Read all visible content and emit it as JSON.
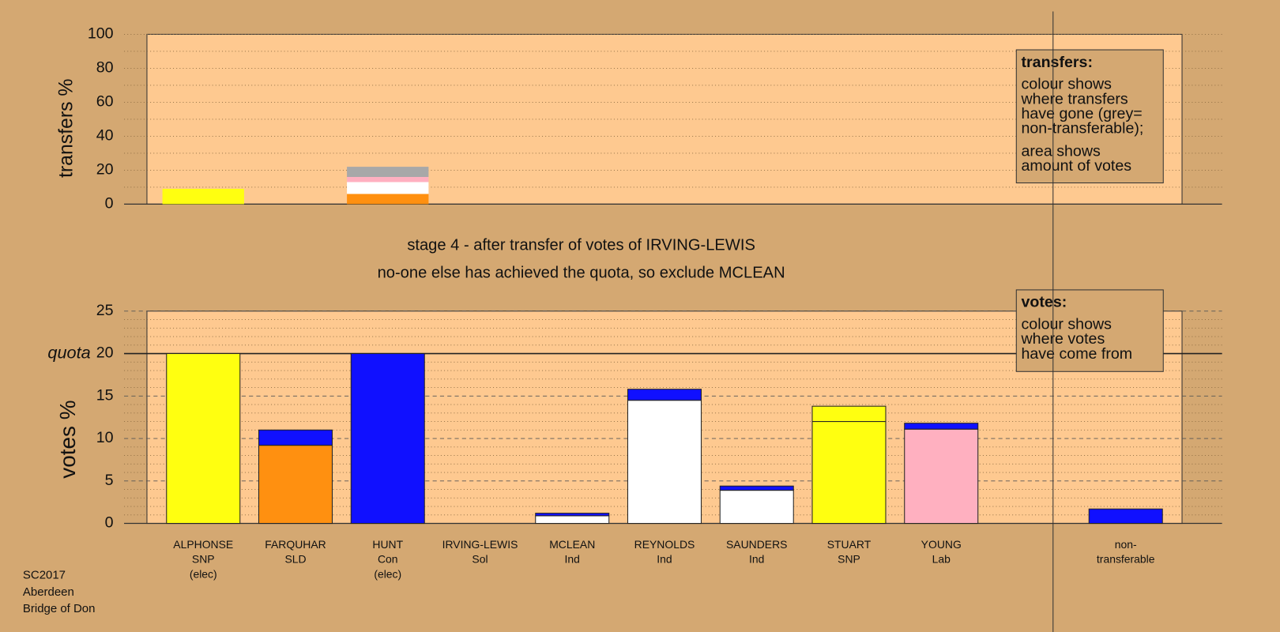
{
  "chart_data": [
    {
      "type": "stacked-bar",
      "ylabel": "transfers %",
      "ylim": [
        0,
        100
      ],
      "yticks": [
        0,
        20,
        40,
        60,
        80,
        100
      ],
      "minor_yticks": [
        10,
        30,
        50,
        70,
        90
      ],
      "series": [
        {
          "color": "#ff9010",
          "values": [
            null,
            null,
            6,
            null,
            null,
            null,
            null,
            null,
            null,
            null,
            null
          ]
        },
        {
          "color": "#ffffff",
          "values": [
            null,
            null,
            7,
            null,
            null,
            null,
            null,
            null,
            null,
            null,
            null
          ]
        },
        {
          "color": "#ffb0c0",
          "values": [
            null,
            null,
            3,
            null,
            null,
            null,
            null,
            null,
            null,
            null,
            null
          ]
        },
        {
          "color": "#a8a8a8",
          "values": [
            null,
            null,
            6,
            null,
            null,
            null,
            null,
            null,
            null,
            null,
            null
          ]
        },
        {
          "color": "#ffff10",
          "values": [
            9,
            null,
            null,
            null,
            null,
            null,
            null,
            null,
            null,
            null,
            null
          ]
        }
      ],
      "legend_box": {
        "title": "transfers:",
        "paragraphs": [
          [
            "colour shows",
            "where transfers",
            "have gone (grey=",
            "non-transferable);"
          ],
          [
            "area shows",
            "amount of votes"
          ]
        ]
      }
    },
    {
      "type": "stacked-bar",
      "ylabel": "votes %",
      "categories": [
        [
          "ALPHONSE",
          "SNP",
          "(elec)"
        ],
        [
          "FARQUHAR",
          "SLD"
        ],
        [
          "HUNT",
          "Con",
          "(elec)"
        ],
        [
          "IRVING-LEWIS",
          "Sol"
        ],
        [
          "MCLEAN",
          "Ind"
        ],
        [
          "REYNOLDS",
          "Ind"
        ],
        [
          "SAUNDERS",
          "Ind"
        ],
        [
          "STUART",
          "SNP"
        ],
        [
          "YOUNG",
          "Lab"
        ],
        null,
        [
          "non-",
          "transferable"
        ]
      ],
      "ylim": [
        0,
        25
      ],
      "yticks": [
        0,
        5,
        10,
        15,
        20,
        25
      ],
      "minor_yticks": [
        1,
        2,
        3,
        4,
        6,
        7,
        8,
        9,
        11,
        12,
        13,
        14,
        16,
        17,
        18,
        19,
        21,
        22,
        23,
        24
      ],
      "reference_line": {
        "value": 20,
        "label": "quota"
      },
      "series": [
        {
          "color": "#ffff10",
          "values": [
            20,
            null,
            null,
            null,
            null,
            null,
            null,
            12,
            null,
            null,
            null
          ]
        },
        {
          "color": "#ff9010",
          "values": [
            null,
            9.2,
            null,
            null,
            null,
            null,
            null,
            null,
            null,
            null,
            null
          ]
        },
        {
          "color": "#ffffff",
          "values": [
            null,
            null,
            null,
            null,
            0.9,
            14.5,
            3.9,
            null,
            null,
            null,
            null
          ]
        },
        {
          "color": "#ffb0c0",
          "values": [
            null,
            null,
            null,
            null,
            null,
            null,
            null,
            null,
            11.1,
            null,
            null
          ]
        },
        {
          "color": "#1010ff",
          "values": [
            null,
            1.8,
            20,
            null,
            0.3,
            1.3,
            0.5,
            null,
            0.7,
            null,
            1.7
          ]
        },
        {
          "color": "#ffff10",
          "values": [
            null,
            null,
            null,
            null,
            null,
            null,
            null,
            1.8,
            null,
            null,
            null
          ]
        }
      ],
      "legend_box": {
        "title": "votes:",
        "paragraphs": [
          [
            "colour shows",
            "where votes",
            "have come from"
          ]
        ]
      }
    }
  ],
  "stage_text": [
    "stage 4 - after transfer of votes of IRVING-LEWIS",
    "no-one else has achieved the quota, so exclude MCLEAN"
  ],
  "footer": [
    "SC2017",
    "Aberdeen",
    "Bridge of Don"
  ]
}
